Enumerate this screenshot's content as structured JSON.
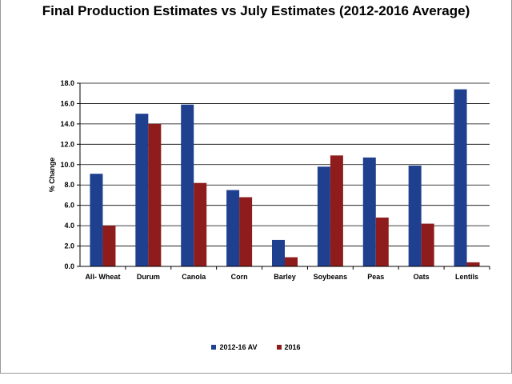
{
  "chart_data": {
    "type": "bar",
    "title": "Final Production Estimates vs July Estimates (2012-2016 Average)",
    "xlabel": "",
    "ylabel": "% Change",
    "ylim": [
      0,
      18
    ],
    "ytick_step": 2,
    "ytick_labels": [
      "0.0",
      "2.0",
      "4.0",
      "6.0",
      "8.0",
      "10.0",
      "12.0",
      "14.0",
      "16.0",
      "18.0"
    ],
    "grid": true,
    "legend_position": "bottom-center",
    "categories": [
      "All- Wheat",
      "Durum",
      "Canola",
      "Corn",
      "Barley",
      "Soybeans",
      "Peas",
      "Oats",
      "Lentils"
    ],
    "series": [
      {
        "name": "2012-16 AV",
        "color": "#1f3f8f",
        "values": [
          9.1,
          15.0,
          15.9,
          7.5,
          2.6,
          9.8,
          10.7,
          9.9,
          17.4
        ]
      },
      {
        "name": "2016",
        "color": "#8e1c1c",
        "values": [
          4.0,
          14.0,
          8.2,
          6.8,
          0.9,
          10.9,
          4.8,
          4.2,
          0.4
        ]
      }
    ]
  }
}
